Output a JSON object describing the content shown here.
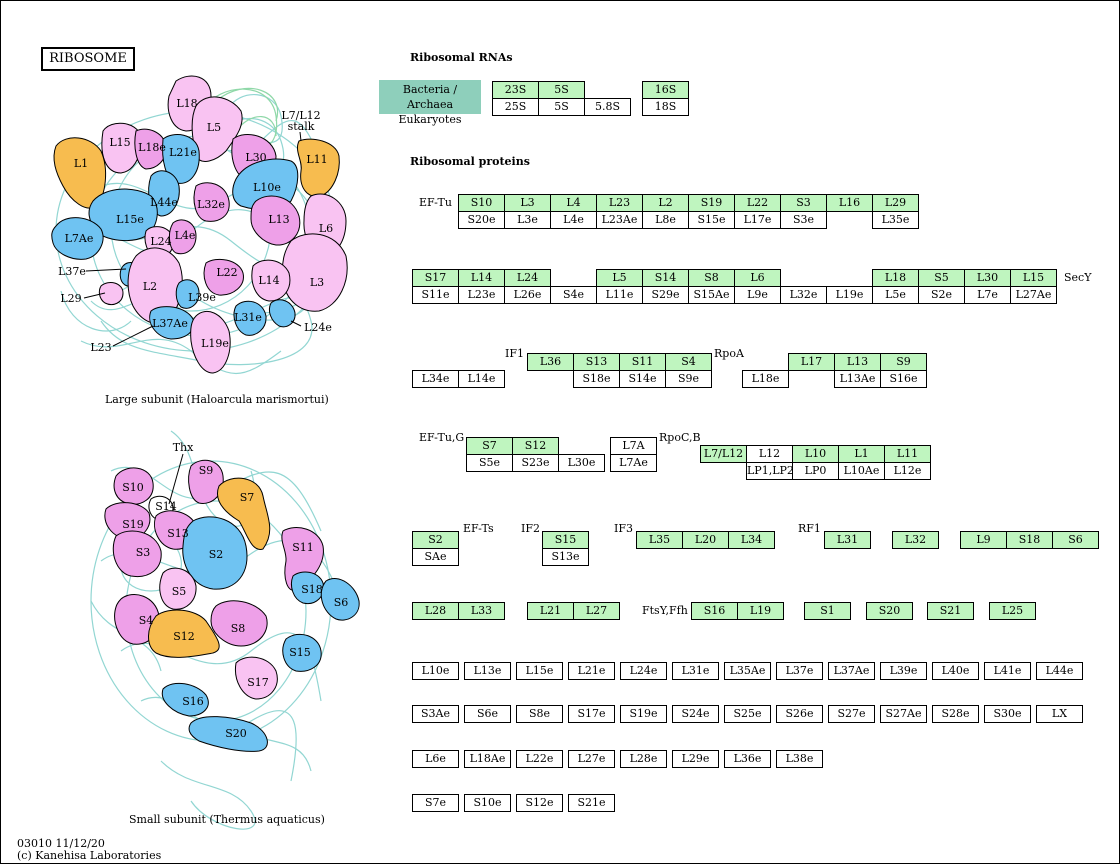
{
  "title": "RIBOSOME",
  "rnas": {
    "heading": "Ribosomal RNAs",
    "legend_bacteria": "Bacteria / Archaea",
    "legend_eukaryotes": "Eukaryotes",
    "top": [
      "23S",
      "5S",
      "16S"
    ],
    "bottom": [
      "25S",
      "5S",
      "5.8S",
      "18S"
    ]
  },
  "proteins_heading": "Ribosomal proteins",
  "labels": {
    "eftu": "EF-Tu",
    "secy": "SecY",
    "if1": "IF1",
    "rpoa": "RpoA",
    "eftug": "EF-Tu,G",
    "rpocb": "RpoC,B",
    "efts": "EF-Ts",
    "if2": "IF2",
    "if3": "IF3",
    "rf1": "RF1",
    "ftsy": "FtsY,Ffh"
  },
  "row1": {
    "top": [
      "S10",
      "L3",
      "L4",
      "L23",
      "L2",
      "S19",
      "L22",
      "S3",
      "L16",
      "L29"
    ],
    "bottom": [
      "S20e",
      "L3e",
      "L4e",
      "L23Ae",
      "L8e",
      "S15e",
      "L17e",
      "S3e",
      "",
      "L35e"
    ]
  },
  "row2": {
    "top": [
      "S17",
      "L14",
      "L24",
      "L5",
      "S14",
      "S8",
      "L6",
      "L18",
      "S5",
      "L30",
      "L15"
    ],
    "bottom": [
      "S11e",
      "L23e",
      "L26e",
      "S4e",
      "L11e",
      "S29e",
      "S15Ae",
      "L9e",
      "L32e",
      "L19e",
      "L5e",
      "S2e",
      "L7e",
      "L27Ae"
    ]
  },
  "row3": {
    "top": [
      "L36",
      "S13",
      "S11",
      "S4",
      "L17",
      "L13",
      "S9"
    ],
    "bottom": [
      "L34e",
      "L14e",
      "S18e",
      "S14e",
      "S9e",
      "L18e",
      "L13Ae",
      "S16e"
    ]
  },
  "row4": {
    "top": [
      "S7",
      "S12",
      "L7A",
      "L7/L12",
      "L12",
      "L10",
      "L1",
      "L11"
    ],
    "bottom": [
      "S5e",
      "S23e",
      "L30e",
      "L7Ae",
      "LP1,LP2",
      "LP0",
      "L10Ae",
      "L12e"
    ]
  },
  "row5": {
    "top": [
      "S2",
      "S15",
      "L35",
      "L20",
      "L34",
      "L31",
      "L32",
      "L9",
      "S18",
      "S6"
    ],
    "bottom": [
      "SAe",
      "S13e"
    ]
  },
  "row6": [
    "L28",
    "L33",
    "L21",
    "L27",
    "S16",
    "L19",
    "S1",
    "S20",
    "S21",
    "L25"
  ],
  "euk1": [
    "L10e",
    "L13e",
    "L15e",
    "L21e",
    "L24e",
    "L31e",
    "L35Ae",
    "L37e",
    "L37Ae",
    "L39e",
    "L40e",
    "L41e",
    "L44e"
  ],
  "euk2": [
    "S3Ae",
    "S6e",
    "S8e",
    "S17e",
    "S19e",
    "S24e",
    "S25e",
    "S26e",
    "S27e",
    "S27Ae",
    "S28e",
    "S30e",
    "LX"
  ],
  "euk3": [
    "L6e",
    "L18Ae",
    "L22e",
    "L27e",
    "L28e",
    "L29e",
    "L36e",
    "L38e"
  ],
  "euk4": [
    "S7e",
    "S10e",
    "S12e",
    "S21e"
  ],
  "large_subunit": {
    "caption": "Large subunit (Haloarcula marismortui)",
    "stalk_label_1": "L7/L12",
    "stalk_label_2": "stalk",
    "proteins": [
      "L18",
      "L15",
      "L18e",
      "L21e",
      "L5",
      "L30",
      "L1",
      "L11",
      "L10e",
      "L44e",
      "L32e",
      "L15e",
      "L13",
      "L6",
      "L7Ae",
      "L24",
      "L4e",
      "L37e",
      "L2",
      "L29",
      "L22",
      "L14",
      "L3",
      "L39e",
      "L37Ae",
      "L31e",
      "L24e",
      "L23",
      "L19e"
    ]
  },
  "small_subunit": {
    "caption": "Small subunit (Thermus aquaticus)",
    "proteins": [
      "Thx",
      "S9",
      "S10",
      "S14",
      "S19",
      "S13",
      "S7",
      "S3",
      "S2",
      "S11",
      "S18",
      "S6",
      "S5",
      "S4",
      "S12",
      "S8",
      "S15",
      "S17",
      "S16",
      "S20"
    ]
  },
  "footer": {
    "id_date": "03010 11/12/20",
    "copyright": "(c) Kanehisa Laboratories"
  },
  "colors": {
    "green_cell": "#bff5bf",
    "legend": "#8ecfbb",
    "pink": "#f9c3f2",
    "magenta": "#eea0e8",
    "blue": "#6fc3f2",
    "orange": "#f7bc4f",
    "rna": "#7fcfcb"
  }
}
